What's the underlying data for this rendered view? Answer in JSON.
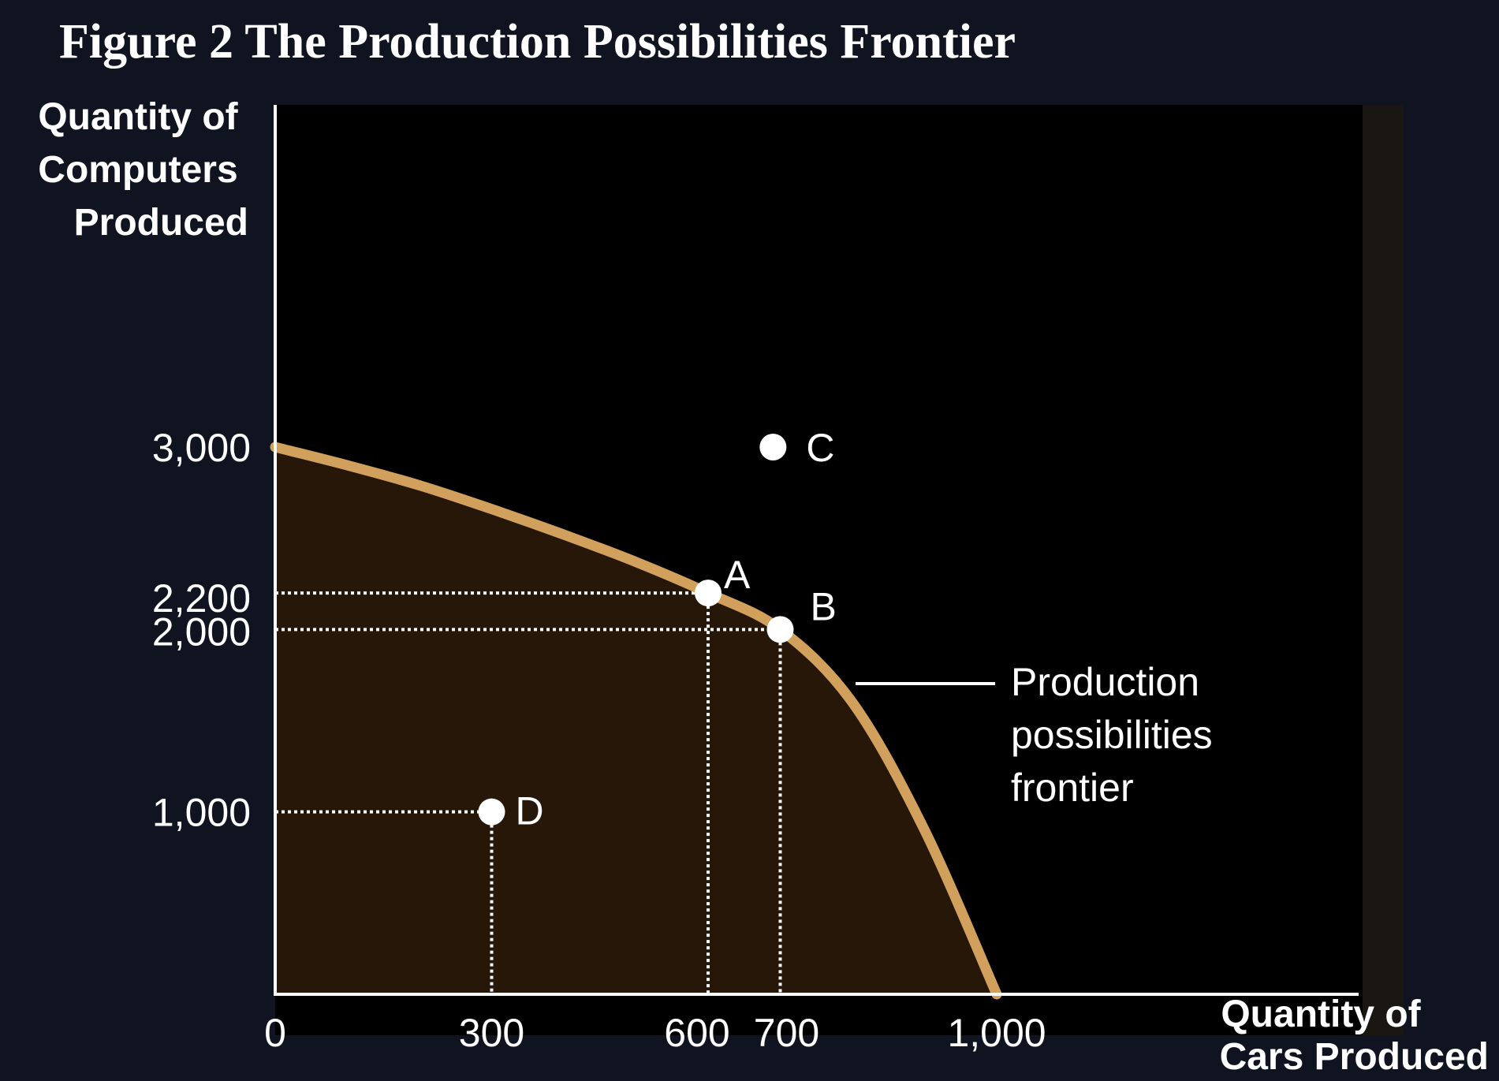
{
  "title": "Figure 2 The Production Possibilities Frontier",
  "colors": {
    "page_background": "#0f1420",
    "plot_background": "#000000",
    "feasible_fill": "#271708",
    "frontier": "#d0a05c",
    "text": "#ffffff"
  },
  "chart_data": {
    "type": "line",
    "title": "Figure 2 The Production Possibilities Frontier",
    "xlabel": "Quantity of Cars Produced",
    "ylabel": "Quantity of Computers Produced",
    "xlim": [
      0,
      1000
    ],
    "ylim": [
      0,
      3000
    ],
    "x_ticks": [
      "0",
      "300",
      "600",
      "700",
      "1,000"
    ],
    "y_ticks": [
      "1,000",
      "2,000",
      "2,200",
      "3,000"
    ],
    "grid": false,
    "series": [
      {
        "name": "Production possibilities frontier",
        "x": [
          0,
          100,
          200,
          300,
          400,
          500,
          600,
          700,
          800,
          900,
          1000
        ],
        "y": [
          3000,
          2900,
          2790,
          2660,
          2520,
          2370,
          2200,
          2000,
          1600,
          900,
          0
        ]
      }
    ],
    "points": [
      {
        "label": "A",
        "x": 600,
        "y": 2200
      },
      {
        "label": "B",
        "x": 700,
        "y": 2000
      },
      {
        "label": "C",
        "x": 690,
        "y": 3000
      },
      {
        "label": "D",
        "x": 300,
        "y": 1000
      }
    ],
    "annotation": "Production possibilities frontier",
    "annotation_lines": [
      "Production",
      "possibilities",
      "frontier"
    ],
    "shaded_region": "feasible area under frontier"
  }
}
